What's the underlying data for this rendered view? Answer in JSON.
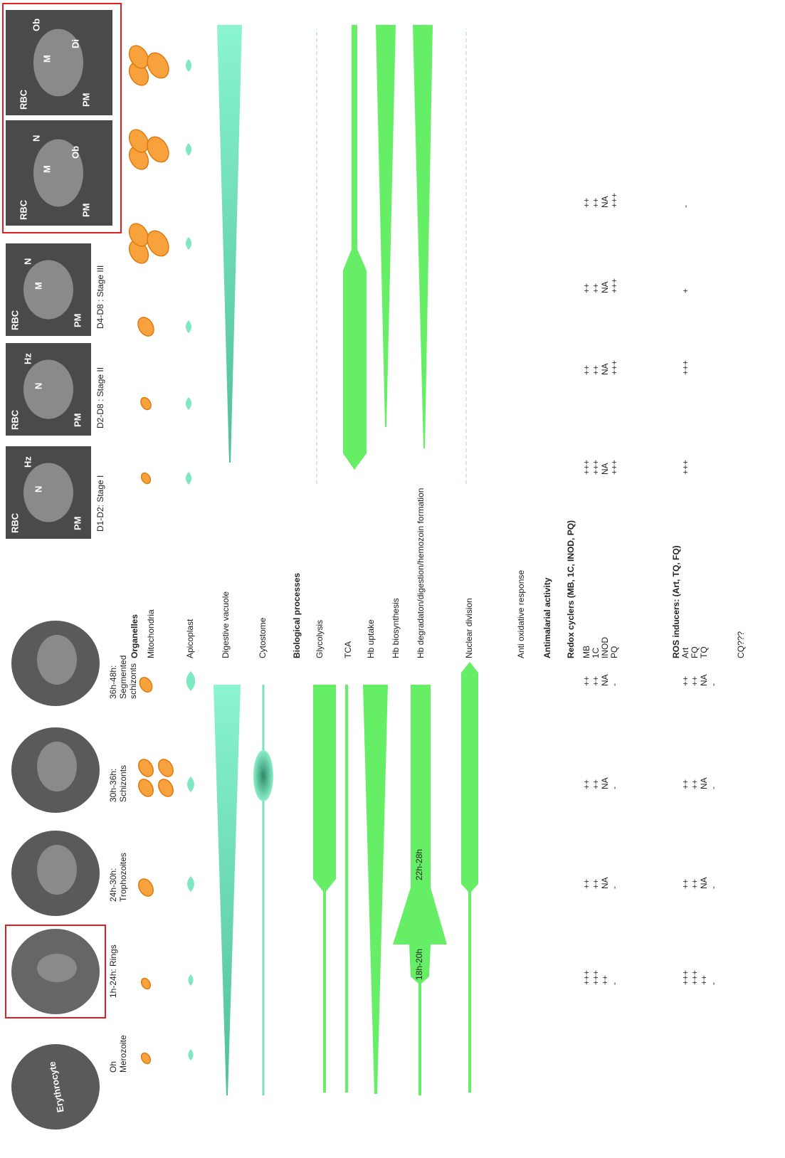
{
  "blood_stages": [
    {
      "label": [
        "Oh",
        "Merozoite"
      ]
    },
    {
      "label": [
        "1h-24h: Rings"
      ],
      "redox": [
        "+++",
        "+++",
        "++",
        "-"
      ],
      "ros": [
        "+++",
        "+++",
        "++",
        "-"
      ]
    },
    {
      "label": [
        "24h-30h:",
        "Trophozoites"
      ],
      "redox": [
        "++",
        "++",
        "NA",
        "-"
      ],
      "ros": [
        "++",
        "++",
        "NA",
        "-"
      ]
    },
    {
      "label": [
        "30h-36h:",
        "Schizonts"
      ],
      "redox": [
        "++",
        "++",
        "NA",
        "-"
      ],
      "ros": [
        "++",
        "++",
        "NA",
        "-"
      ]
    },
    {
      "label": [
        "36h-48h:",
        "Segmented",
        "schizonts"
      ],
      "redox": [
        "++",
        "++",
        "NA",
        "-"
      ],
      "ros": [
        "++",
        "++",
        "NA",
        "-"
      ]
    }
  ],
  "erythrocyte_label": "Erythrocyte",
  "hb_timing": [
    "18h-20h",
    "22h-28h"
  ],
  "gametocyte_stages": [
    {
      "label": "D1-D2:  Stage I",
      "image_labels": [
        "RBC",
        "PM",
        "N",
        "Hz"
      ],
      "redox": [
        "+++",
        "+++",
        "NA",
        "+++"
      ],
      "ros": [
        "+++"
      ]
    },
    {
      "label": "D2-D8 : Stage II",
      "image_labels": [
        "RBC",
        "PM",
        "N",
        "Hz"
      ],
      "redox": [
        "++",
        "++",
        "NA",
        "+++"
      ],
      "ros": [
        "+++"
      ]
    },
    {
      "label": "D4-D8 : Stage III",
      "image_labels": [
        "RBC",
        "PM",
        "M",
        "N"
      ],
      "redox": [
        "++",
        "++",
        "NA",
        "+++"
      ],
      "ros": [
        "+"
      ]
    },
    {
      "image_labels": [
        "RBC",
        "PM",
        "M",
        "N",
        "Ob"
      ],
      "redox": [
        "++",
        "++",
        "NA",
        "+++"
      ],
      "ros": [
        "-"
      ]
    },
    {
      "image_labels": [
        "RBC",
        "PM",
        "M",
        "Ob",
        "Di"
      ]
    }
  ],
  "organelles": {
    "heading": "Organelles",
    "items": [
      "Mitochondria",
      "Apicoplast",
      "Digestive vacuole",
      "Cytostome"
    ]
  },
  "processes": {
    "heading": "Biological processes",
    "items": [
      "Glycolysis",
      "TCA",
      "Hb uptake",
      "Hb biosynthesis",
      "Hb degradaton/digestion/hemozoin formation",
      "Nuclear division",
      "Anti oxidative response"
    ]
  },
  "antimalarial": {
    "heading": "Antimalarial activity",
    "redox": {
      "heading": "Redox cyclers  (MB, 1C, INOD, PQ)",
      "items": [
        "MB",
        "1C",
        "INOD",
        "PQ"
      ]
    },
    "ros": {
      "heading": "ROS inducers: (Art, TQ, FQ)",
      "items": [
        "Art",
        "FQ",
        "TQ"
      ]
    },
    "other": "CQ???"
  }
}
